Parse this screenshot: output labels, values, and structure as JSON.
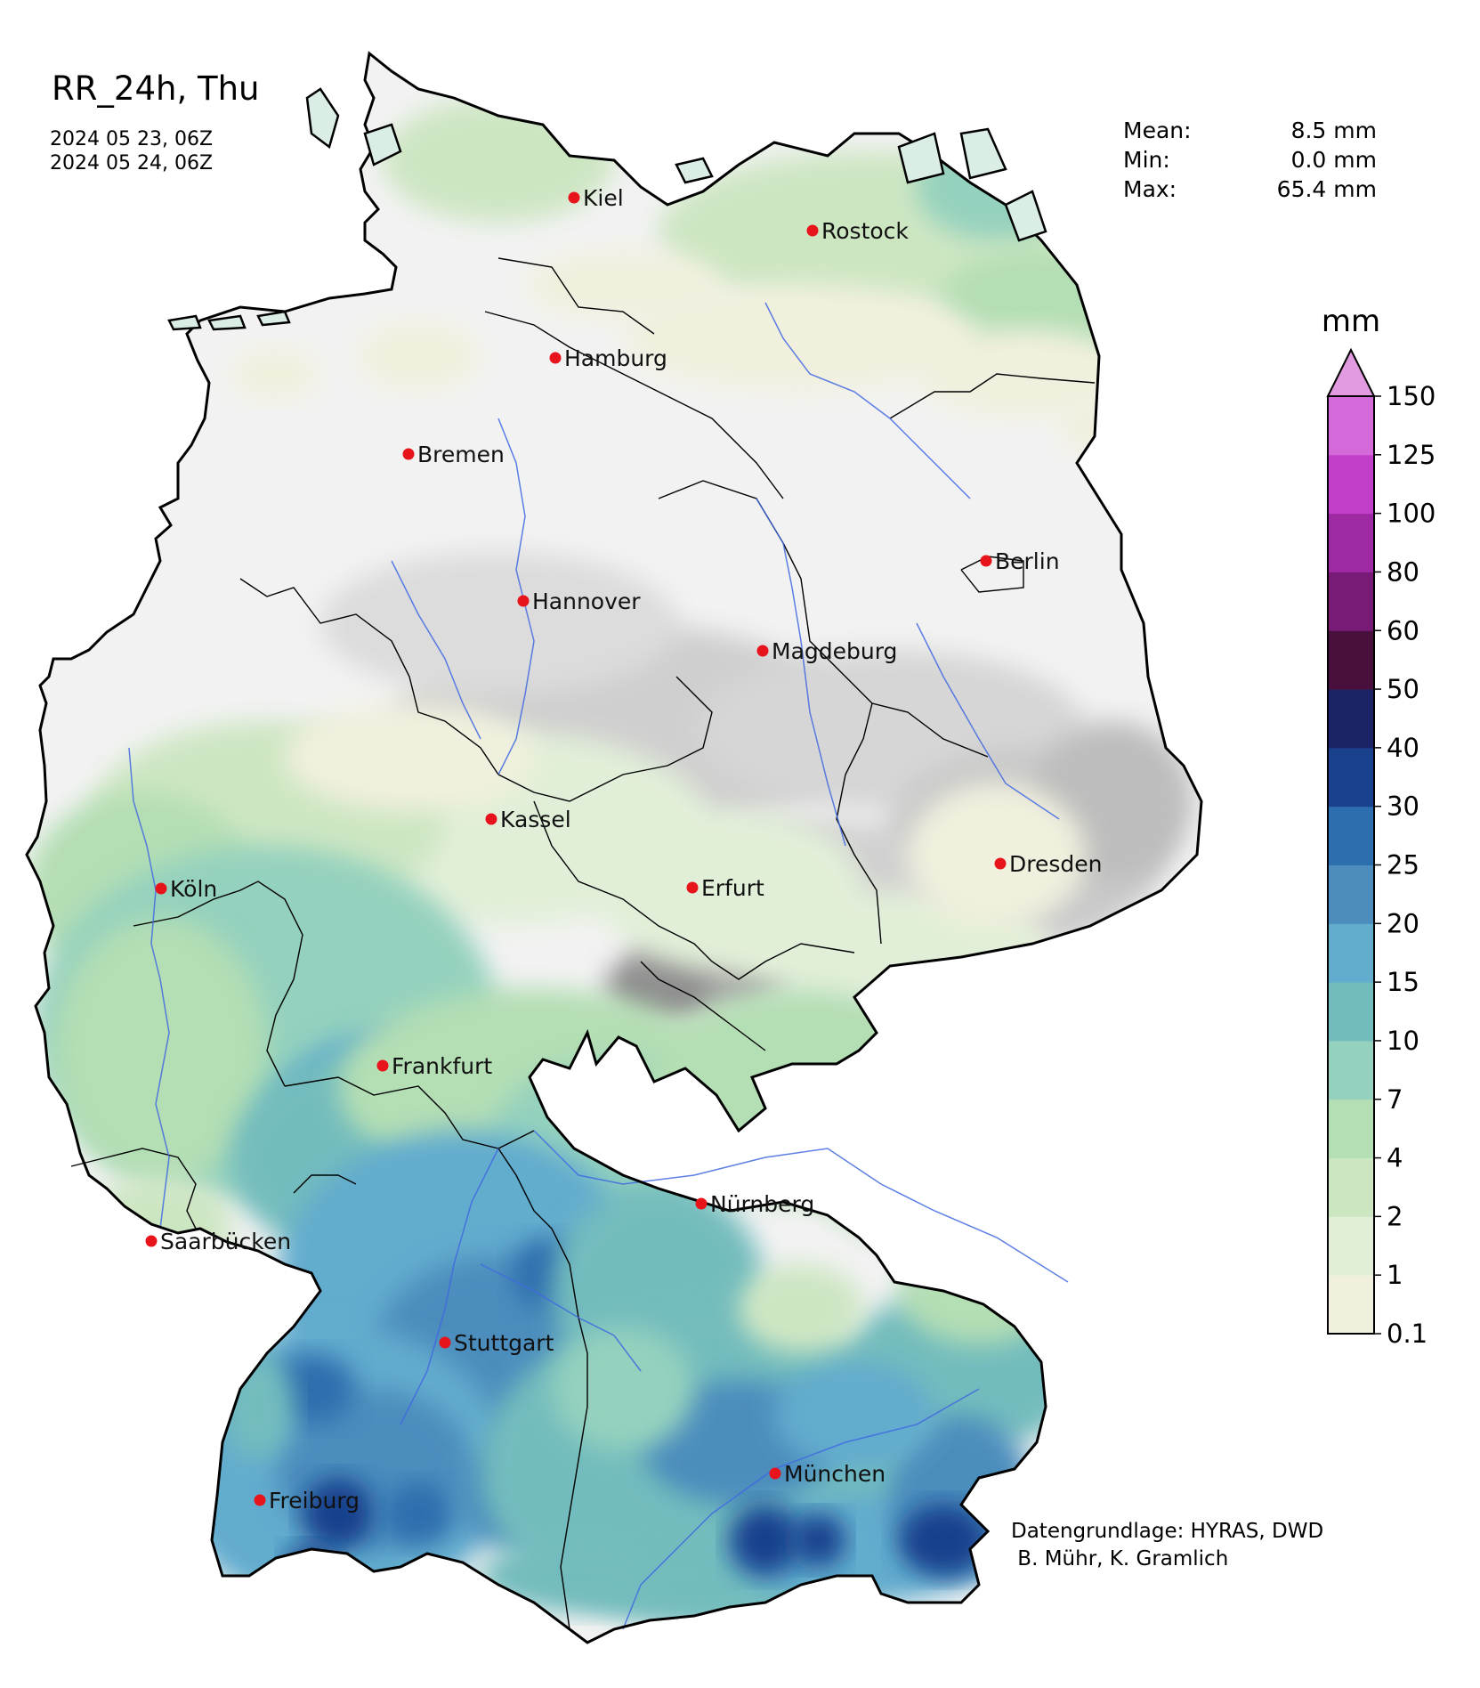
{
  "title": "RR_24h, Thu",
  "dates": [
    "2024 05 23, 06Z",
    "2024 05 24, 06Z"
  ],
  "stats": [
    {
      "label": "Mean:",
      "value": "8.5 mm"
    },
    {
      "label": "Min:",
      "value": "0.0 mm"
    },
    {
      "label": "Max:",
      "value": "65.4 mm"
    }
  ],
  "colorbar": {
    "unit": "mm",
    "ticks": [
      "0.1",
      "1",
      "2",
      "4",
      "7",
      "10",
      "15",
      "20",
      "25",
      "30",
      "40",
      "50",
      "60",
      "80",
      "100",
      "125",
      "150"
    ],
    "colors": [
      "#f1f0de",
      "#e2efd8",
      "#cde6c2",
      "#b4deb4",
      "#94d1be",
      "#73bcbd",
      "#62acce",
      "#4c8dbd",
      "#2d6eae",
      "#19418d",
      "#1c2366",
      "#49103d",
      "#781b77",
      "#9e2aa3",
      "#c23fc9",
      "#d46ada",
      "#e29ae0"
    ]
  },
  "cities": [
    {
      "name": "Kiel"
    },
    {
      "name": "Rostock"
    },
    {
      "name": "Hamburg"
    },
    {
      "name": "Bremen"
    },
    {
      "name": "Berlin"
    },
    {
      "name": "Hannover"
    },
    {
      "name": "Magdeburg"
    },
    {
      "name": "Kassel"
    },
    {
      "name": "Dresden"
    },
    {
      "name": "Köln"
    },
    {
      "name": "Erfurt"
    },
    {
      "name": "Frankfurt"
    },
    {
      "name": "Nürnberg"
    },
    {
      "name": "Saarbücken"
    },
    {
      "name": "Stuttgart"
    },
    {
      "name": "München"
    },
    {
      "name": "Freiburg"
    }
  ],
  "credit": "Datengrundlage: HYRAS, DWD\n B. Mühr, K. Gramlich"
}
